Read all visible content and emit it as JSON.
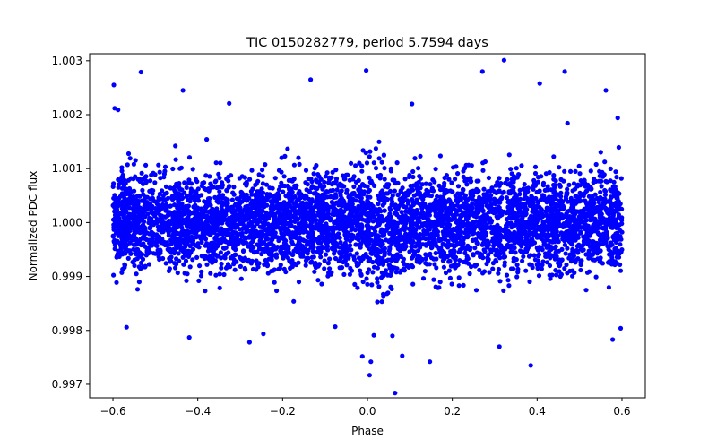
{
  "chart_data": {
    "type": "scatter",
    "title": "TIC 0150282779, period 5.7594 days",
    "xlabel": "Phase",
    "ylabel": "Normalized PDC flux",
    "xlim": [
      -0.655,
      0.655
    ],
    "ylim": [
      0.99675,
      1.00313
    ],
    "xticks": [
      -0.6,
      -0.4,
      -0.2,
      0.0,
      0.2,
      0.4,
      0.6
    ],
    "xtick_labels": [
      "−0.6",
      "−0.4",
      "−0.2",
      "0.0",
      "0.2",
      "0.4",
      "0.6"
    ],
    "yticks": [
      0.997,
      0.998,
      0.999,
      1.0,
      1.001,
      1.002,
      1.003
    ],
    "ytick_labels": [
      "0.997",
      "0.998",
      "0.999",
      "1.000",
      "1.001",
      "1.002",
      "1.003"
    ],
    "grid": false,
    "marker_color": "#0000ff",
    "series": [
      {
        "name": "PDC flux",
        "description": "dense folded light curve spanning phase -0.6 to 0.6, centered at 1.000 with scatter ~0.0004 and a shallow dip near phase 0.05",
        "points": [
          [
            -0.598,
            1.00255
          ],
          [
            -0.596,
            1.00212
          ],
          [
            -0.588,
            1.00209
          ],
          [
            -0.534,
            1.00279
          ],
          [
            -0.435,
            1.00245
          ],
          [
            -0.326,
            1.00221
          ],
          [
            -0.134,
            1.00265
          ],
          [
            -0.003,
            1.00282
          ],
          [
            0.105,
            1.0022
          ],
          [
            0.271,
            1.0028
          ],
          [
            0.322,
            1.00301
          ],
          [
            0.406,
            1.00258
          ],
          [
            0.465,
            1.0028
          ],
          [
            0.562,
            1.00245
          ],
          [
            0.59,
            1.00194
          ],
          [
            -0.568,
            0.99806
          ],
          [
            -0.42,
            0.99787
          ],
          [
            -0.278,
            0.99778
          ],
          [
            -0.076,
            0.99807
          ],
          [
            -0.012,
            0.99752
          ],
          [
            0.005,
            0.99717
          ],
          [
            0.008,
            0.99742
          ],
          [
            0.015,
            0.99791
          ],
          [
            0.065,
            0.99684
          ],
          [
            0.059,
            0.9979
          ],
          [
            0.082,
            0.99753
          ],
          [
            0.147,
            0.99742
          ],
          [
            0.311,
            0.9977
          ],
          [
            0.385,
            0.99735
          ],
          [
            0.578,
            0.99783
          ],
          [
            0.597,
            0.99804
          ]
        ]
      }
    ]
  }
}
